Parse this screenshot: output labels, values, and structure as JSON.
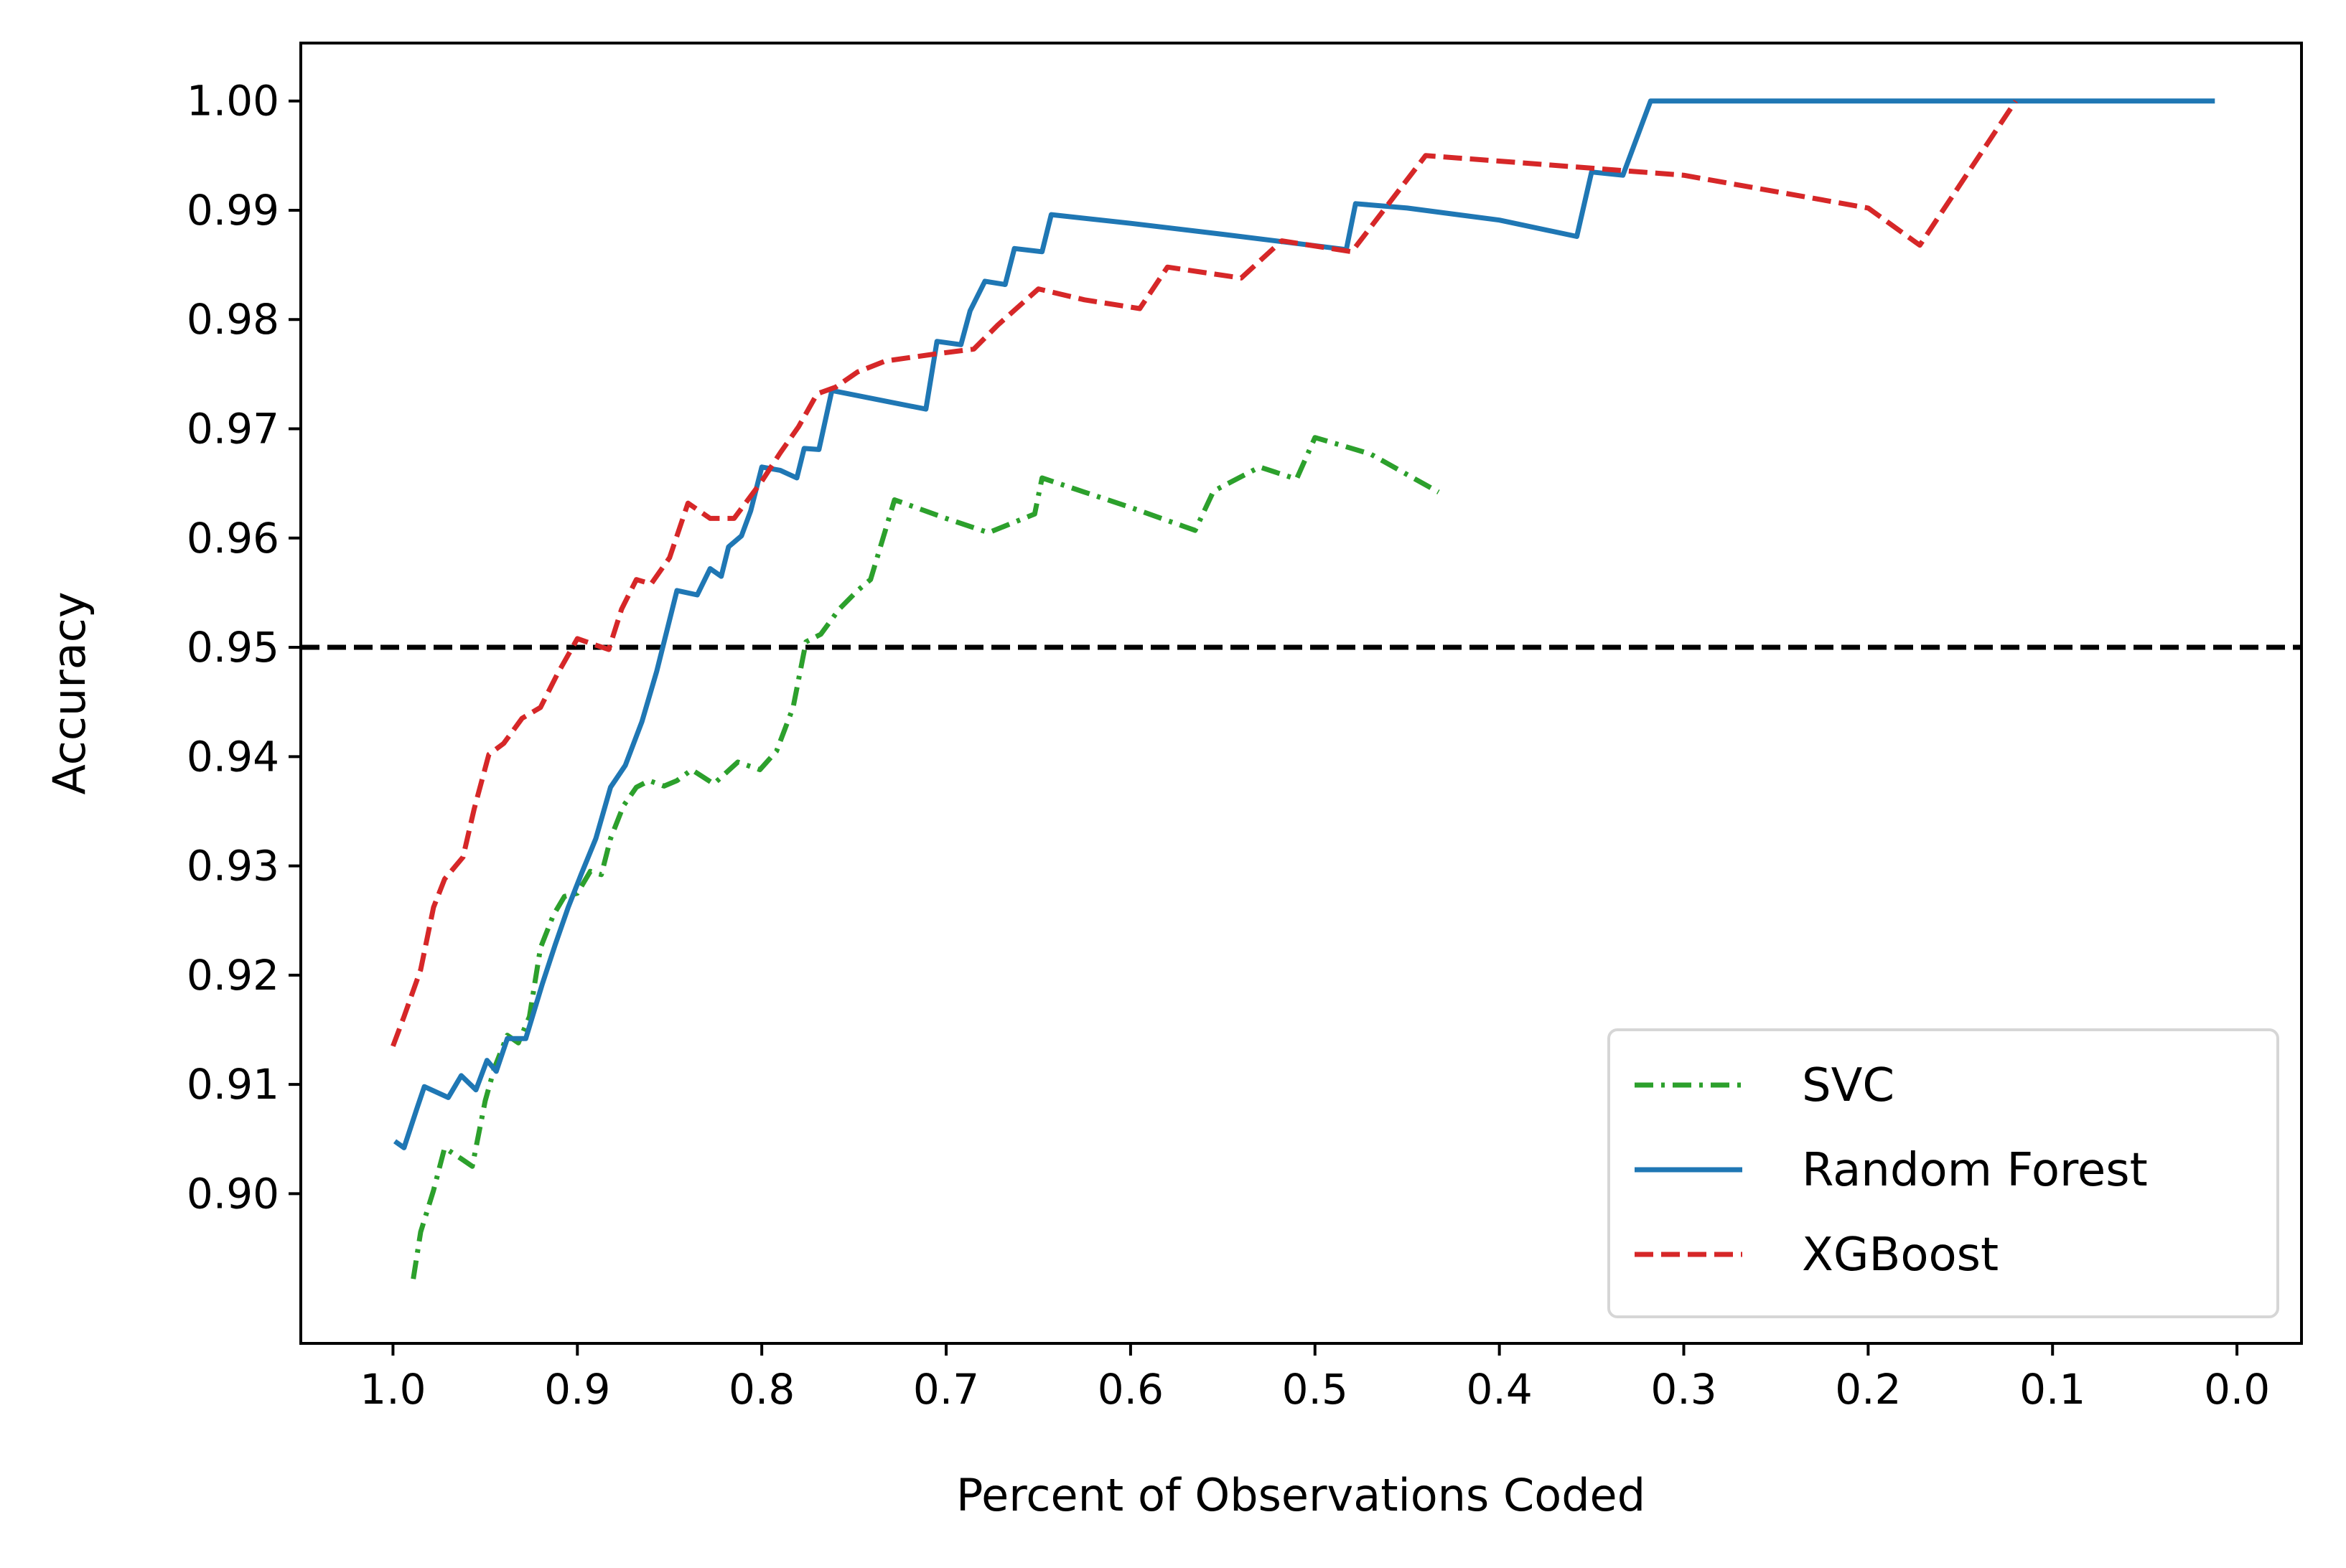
{
  "chart_data": {
    "type": "line",
    "title": "",
    "xlabel": "Percent of Observations Coded",
    "ylabel": "Accuracy",
    "xlim": [
      1.05,
      -0.035
    ],
    "ylim": [
      0.8863,
      1.0053
    ],
    "x_ticks": [
      {
        "value": 1.0,
        "label": "1.0"
      },
      {
        "value": 0.9,
        "label": "0.9"
      },
      {
        "value": 0.8,
        "label": "0.8"
      },
      {
        "value": 0.7,
        "label": "0.7"
      },
      {
        "value": 0.6,
        "label": "0.6"
      },
      {
        "value": 0.5,
        "label": "0.5"
      },
      {
        "value": 0.4,
        "label": "0.4"
      },
      {
        "value": 0.3,
        "label": "0.3"
      },
      {
        "value": 0.2,
        "label": "0.2"
      },
      {
        "value": 0.1,
        "label": "0.1"
      },
      {
        "value": 0.0,
        "label": "0.0"
      }
    ],
    "y_ticks": [
      {
        "value": 0.9,
        "label": "0.90"
      },
      {
        "value": 0.91,
        "label": "0.91"
      },
      {
        "value": 0.92,
        "label": "0.92"
      },
      {
        "value": 0.93,
        "label": "0.93"
      },
      {
        "value": 0.94,
        "label": "0.94"
      },
      {
        "value": 0.95,
        "label": "0.95"
      },
      {
        "value": 0.96,
        "label": "0.96"
      },
      {
        "value": 0.97,
        "label": "0.97"
      },
      {
        "value": 0.98,
        "label": "0.98"
      },
      {
        "value": 0.99,
        "label": "0.99"
      },
      {
        "value": 1.0,
        "label": "1.00"
      }
    ],
    "grid": false,
    "legend_position": "lower-right",
    "reference_line": {
      "y": 0.95,
      "color": "#000000",
      "style": "dashed"
    },
    "series": [
      {
        "name": "SVC",
        "color": "#2ca02c",
        "style": "dashdot",
        "points": [
          [
            0.989,
            0.8922
          ],
          [
            0.985,
            0.8965
          ],
          [
            0.978,
            0.9003
          ],
          [
            0.972,
            0.9042
          ],
          [
            0.963,
            0.9032
          ],
          [
            0.957,
            0.9025
          ],
          [
            0.95,
            0.9085
          ],
          [
            0.945,
            0.9115
          ],
          [
            0.938,
            0.9145
          ],
          [
            0.932,
            0.9138
          ],
          [
            0.926,
            0.9162
          ],
          [
            0.92,
            0.9225
          ],
          [
            0.913,
            0.9255
          ],
          [
            0.907,
            0.9272
          ],
          [
            0.9,
            0.9275
          ],
          [
            0.893,
            0.9295
          ],
          [
            0.887,
            0.9292
          ],
          [
            0.882,
            0.9325
          ],
          [
            0.875,
            0.9355
          ],
          [
            0.868,
            0.9372
          ],
          [
            0.861,
            0.9378
          ],
          [
            0.853,
            0.9373
          ],
          [
            0.846,
            0.9378
          ],
          [
            0.838,
            0.9388
          ],
          [
            0.826,
            0.9375
          ],
          [
            0.813,
            0.9395
          ],
          [
            0.801,
            0.9388
          ],
          [
            0.792,
            0.9405
          ],
          [
            0.783,
            0.9445
          ],
          [
            0.776,
            0.9505
          ],
          [
            0.768,
            0.9512
          ],
          [
            0.758,
            0.9535
          ],
          [
            0.748,
            0.9552
          ],
          [
            0.741,
            0.9562
          ],
          [
            0.728,
            0.9635
          ],
          [
            0.7,
            0.9618
          ],
          [
            0.677,
            0.9605
          ],
          [
            0.652,
            0.9622
          ],
          [
            0.648,
            0.9655
          ],
          [
            0.625,
            0.9642
          ],
          [
            0.6,
            0.9628
          ],
          [
            0.565,
            0.9607
          ],
          [
            0.555,
            0.9643
          ],
          [
            0.53,
            0.9665
          ],
          [
            0.51,
            0.9654
          ],
          [
            0.5,
            0.9692
          ],
          [
            0.47,
            0.9677
          ],
          [
            0.433,
            0.9642
          ]
        ]
      },
      {
        "name": "Random Forest",
        "color": "#1f77b4",
        "style": "solid",
        "points": [
          [
            0.999,
            0.9048
          ],
          [
            0.994,
            0.9042
          ],
          [
            0.987,
            0.9078
          ],
          [
            0.983,
            0.9098
          ],
          [
            0.97,
            0.9088
          ],
          [
            0.963,
            0.9108
          ],
          [
            0.955,
            0.9095
          ],
          [
            0.949,
            0.9122
          ],
          [
            0.944,
            0.9112
          ],
          [
            0.938,
            0.9142
          ],
          [
            0.928,
            0.9142
          ],
          [
            0.919,
            0.9192
          ],
          [
            0.912,
            0.9228
          ],
          [
            0.905,
            0.9262
          ],
          [
            0.898,
            0.9292
          ],
          [
            0.89,
            0.9325
          ],
          [
            0.882,
            0.9372
          ],
          [
            0.874,
            0.9392
          ],
          [
            0.865,
            0.9432
          ],
          [
            0.857,
            0.9478
          ],
          [
            0.846,
            0.9552
          ],
          [
            0.835,
            0.9548
          ],
          [
            0.828,
            0.9572
          ],
          [
            0.822,
            0.9565
          ],
          [
            0.818,
            0.9592
          ],
          [
            0.811,
            0.9602
          ],
          [
            0.806,
            0.9625
          ],
          [
            0.8,
            0.9665
          ],
          [
            0.79,
            0.9662
          ],
          [
            0.781,
            0.9655
          ],
          [
            0.777,
            0.9682
          ],
          [
            0.769,
            0.9681
          ],
          [
            0.762,
            0.9735
          ],
          [
            0.711,
            0.9718
          ],
          [
            0.705,
            0.978
          ],
          [
            0.692,
            0.9777
          ],
          [
            0.687,
            0.9808
          ],
          [
            0.679,
            0.9835
          ],
          [
            0.668,
            0.9832
          ],
          [
            0.663,
            0.9865
          ],
          [
            0.648,
            0.9862
          ],
          [
            0.643,
            0.9896
          ],
          [
            0.6,
            0.9888
          ],
          [
            0.55,
            0.9878
          ],
          [
            0.483,
            0.9864
          ],
          [
            0.478,
            0.9906
          ],
          [
            0.45,
            0.9902
          ],
          [
            0.4,
            0.9891
          ],
          [
            0.358,
            0.9876
          ],
          [
            0.35,
            0.9935
          ],
          [
            0.333,
            0.9932
          ],
          [
            0.318,
            1.0
          ],
          [
            0.1,
            1.0
          ],
          [
            0.012,
            1.0
          ]
        ]
      },
      {
        "name": "XGBoost",
        "color": "#d62728",
        "style": "dashed",
        "points": [
          [
            1.0,
            0.9135
          ],
          [
            0.994,
            0.9162
          ],
          [
            0.985,
            0.9205
          ],
          [
            0.978,
            0.9262
          ],
          [
            0.972,
            0.9288
          ],
          [
            0.962,
            0.9308
          ],
          [
            0.956,
            0.9352
          ],
          [
            0.948,
            0.9402
          ],
          [
            0.94,
            0.9412
          ],
          [
            0.93,
            0.9435
          ],
          [
            0.92,
            0.9445
          ],
          [
            0.911,
            0.9475
          ],
          [
            0.9,
            0.9508
          ],
          [
            0.89,
            0.9502
          ],
          [
            0.883,
            0.9498
          ],
          [
            0.876,
            0.9535
          ],
          [
            0.868,
            0.9562
          ],
          [
            0.86,
            0.9558
          ],
          [
            0.85,
            0.9582
          ],
          [
            0.84,
            0.9632
          ],
          [
            0.828,
            0.9618
          ],
          [
            0.815,
            0.9618
          ],
          [
            0.8,
            0.9652
          ],
          [
            0.79,
            0.9678
          ],
          [
            0.78,
            0.9702
          ],
          [
            0.77,
            0.9732
          ],
          [
            0.76,
            0.9738
          ],
          [
            0.748,
            0.9752
          ],
          [
            0.733,
            0.9762
          ],
          [
            0.708,
            0.9768
          ],
          [
            0.685,
            0.9773
          ],
          [
            0.672,
            0.9795
          ],
          [
            0.65,
            0.9828
          ],
          [
            0.625,
            0.9818
          ],
          [
            0.595,
            0.981
          ],
          [
            0.58,
            0.9848
          ],
          [
            0.54,
            0.9838
          ],
          [
            0.518,
            0.9872
          ],
          [
            0.48,
            0.9862
          ],
          [
            0.44,
            0.995
          ],
          [
            0.4,
            0.9945
          ],
          [
            0.3,
            0.9932
          ],
          [
            0.2,
            0.9902
          ],
          [
            0.172,
            0.9868
          ],
          [
            0.12,
            1.0
          ]
        ]
      }
    ]
  }
}
